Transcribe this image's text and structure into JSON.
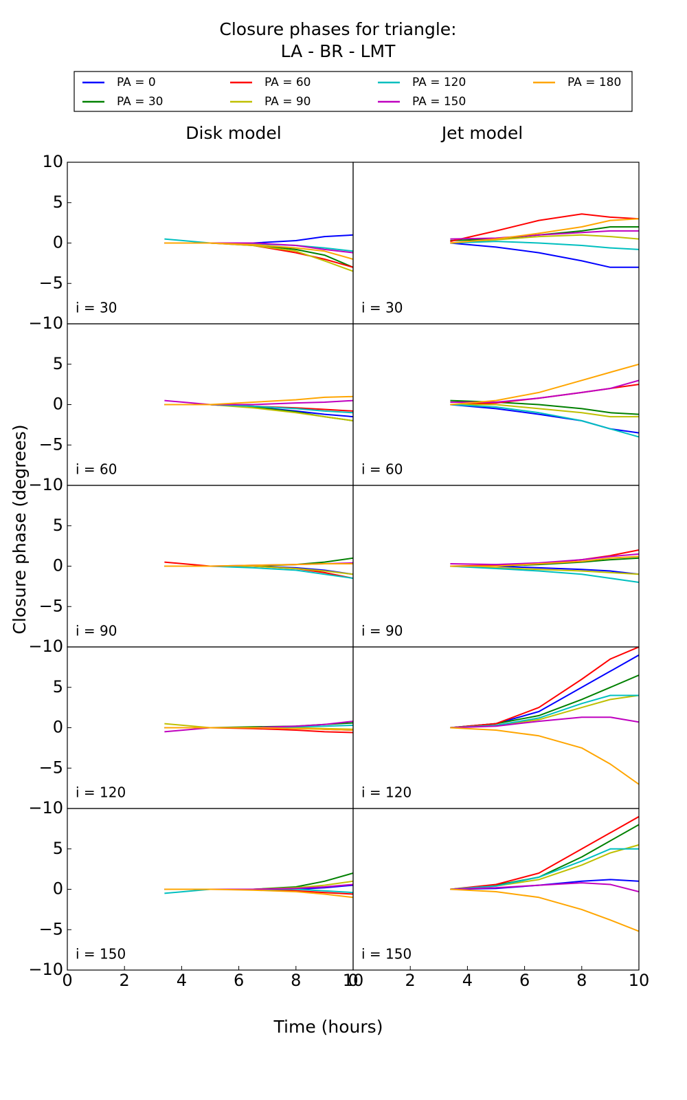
{
  "title": [
    "Closure phases for triangle:",
    "LA - BR - LMT"
  ],
  "legend": [
    {
      "name": "PA = 0",
      "color": "#0000ff"
    },
    {
      "name": "PA = 30",
      "color": "#008000"
    },
    {
      "name": "PA = 60",
      "color": "#ff0000"
    },
    {
      "name": "PA = 90",
      "color": "#bfbf00"
    },
    {
      "name": "PA = 120",
      "color": "#00bfbf"
    },
    {
      "name": "PA = 150",
      "color": "#bf00bf"
    },
    {
      "name": "PA = 180",
      "color": "#ffa500"
    }
  ],
  "column_titles": [
    "Disk model",
    "Jet model"
  ],
  "xlabel": "Time (hours)",
  "ylabel": "Closure phase (degrees)",
  "chart_data": [
    {
      "type": "line",
      "annotation": "i = 30",
      "x": [
        3.4,
        5,
        6.5,
        8,
        9,
        10
      ],
      "xlim": [
        0,
        10
      ],
      "ylim": [
        -10,
        10
      ],
      "yticks": [
        {
          "value": -10,
          "label": "−10"
        },
        {
          "value": -5,
          "label": "−5"
        },
        0,
        5,
        10
      ],
      "series": [
        {
          "color": "#0000ff",
          "values": [
            0,
            0,
            0,
            0.3,
            0.8,
            1
          ]
        },
        {
          "color": "#008000",
          "values": [
            0,
            0,
            -0.2,
            -0.8,
            -1.5,
            -3
          ]
        },
        {
          "color": "#ff0000",
          "values": [
            0,
            0,
            -0.3,
            -1.2,
            -2,
            -3
          ]
        },
        {
          "color": "#bfbf00",
          "values": [
            0,
            0,
            -0.3,
            -1,
            -2.2,
            -3.5
          ]
        },
        {
          "color": "#00bfbf",
          "values": [
            0.5,
            0,
            -0.1,
            -0.3,
            -0.6,
            -1
          ]
        },
        {
          "color": "#bf00bf",
          "values": [
            0,
            0,
            0,
            -0.3,
            -0.8,
            -1.2
          ]
        },
        {
          "color": "#ffa500",
          "values": [
            0,
            0,
            -0.2,
            -0.6,
            -1,
            -2
          ]
        }
      ]
    },
    {
      "type": "line",
      "annotation": "i = 30",
      "x": [
        3.4,
        5,
        6.5,
        8,
        9,
        10
      ],
      "xlim": [
        0,
        10
      ],
      "ylim": [
        -10,
        10
      ],
      "series": [
        {
          "color": "#0000ff",
          "values": [
            0,
            -0.5,
            -1.2,
            -2.2,
            -3,
            -3
          ]
        },
        {
          "color": "#008000",
          "values": [
            0.3,
            0.5,
            1,
            1.5,
            2,
            2
          ]
        },
        {
          "color": "#ff0000",
          "values": [
            0.2,
            1.5,
            2.8,
            3.6,
            3.2,
            3
          ]
        },
        {
          "color": "#bfbf00",
          "values": [
            0,
            0.4,
            0.8,
            1,
            0.8,
            0.5
          ]
        },
        {
          "color": "#00bfbf",
          "values": [
            0,
            0.2,
            0,
            -0.3,
            -0.6,
            -0.8
          ]
        },
        {
          "color": "#bf00bf",
          "values": [
            0.5,
            0.6,
            1,
            1.3,
            1.5,
            1.5
          ]
        },
        {
          "color": "#ffa500",
          "values": [
            0,
            0.5,
            1.2,
            2,
            2.8,
            3
          ]
        }
      ]
    },
    {
      "type": "line",
      "annotation": "i = 60",
      "x": [
        3.4,
        5,
        6.5,
        8,
        9,
        10
      ],
      "xlim": [
        0,
        10
      ],
      "ylim": [
        -10,
        10
      ],
      "yticks": [
        {
          "value": -10,
          "label": "−10"
        },
        {
          "value": -5,
          "label": "−5"
        },
        0,
        5
      ],
      "series": [
        {
          "color": "#0000ff",
          "values": [
            0,
            0,
            -0.3,
            -0.8,
            -1.2,
            -1.5
          ]
        },
        {
          "color": "#008000",
          "values": [
            0,
            0,
            -0.3,
            -0.9,
            -1.5,
            -2
          ]
        },
        {
          "color": "#ff0000",
          "values": [
            0,
            0,
            -0.2,
            -0.4,
            -0.6,
            -0.8
          ]
        },
        {
          "color": "#bfbf00",
          "values": [
            0,
            0,
            -0.4,
            -1,
            -1.5,
            -2
          ]
        },
        {
          "color": "#00bfbf",
          "values": [
            0,
            0,
            -0.2,
            -0.5,
            -0.8,
            -1
          ]
        },
        {
          "color": "#bf00bf",
          "values": [
            0.5,
            0,
            0,
            0.2,
            0.3,
            0.5
          ]
        },
        {
          "color": "#ffa500",
          "values": [
            0,
            0,
            0.3,
            0.6,
            0.9,
            1
          ]
        }
      ]
    },
    {
      "type": "line",
      "annotation": "i = 60",
      "x": [
        3.4,
        5,
        6.5,
        8,
        9,
        10
      ],
      "xlim": [
        0,
        10
      ],
      "ylim": [
        -10,
        10
      ],
      "series": [
        {
          "color": "#0000ff",
          "values": [
            0,
            -0.5,
            -1.2,
            -2,
            -3,
            -3.5
          ]
        },
        {
          "color": "#008000",
          "values": [
            0.5,
            0.3,
            0,
            -0.5,
            -1,
            -1.2
          ]
        },
        {
          "color": "#ff0000",
          "values": [
            0,
            0.2,
            0.8,
            1.5,
            2,
            2.5
          ]
        },
        {
          "color": "#bfbf00",
          "values": [
            0,
            0,
            -0.5,
            -1,
            -1.5,
            -1.5
          ]
        },
        {
          "color": "#00bfbf",
          "values": [
            0,
            -0.3,
            -1,
            -2,
            -3,
            -4
          ]
        },
        {
          "color": "#bf00bf",
          "values": [
            0.3,
            0.3,
            0.8,
            1.5,
            2,
            3
          ]
        },
        {
          "color": "#ffa500",
          "values": [
            0,
            0.5,
            1.5,
            3,
            4,
            5
          ]
        }
      ]
    },
    {
      "type": "line",
      "annotation": "i = 90",
      "x": [
        3.4,
        5,
        6.5,
        8,
        9,
        10
      ],
      "xlim": [
        0,
        10
      ],
      "ylim": [
        -10,
        10
      ],
      "yticks": [
        {
          "value": -10,
          "label": "−10"
        },
        {
          "value": -5,
          "label": "−5"
        },
        0,
        5
      ],
      "series": [
        {
          "color": "#0000ff",
          "values": [
            0,
            0,
            0,
            -0.2,
            -0.5,
            -1
          ]
        },
        {
          "color": "#008000",
          "values": [
            0,
            0,
            0,
            0.2,
            0.5,
            1
          ]
        },
        {
          "color": "#ff0000",
          "values": [
            0.5,
            0,
            0,
            -0.3,
            -0.8,
            -1.5
          ]
        },
        {
          "color": "#bfbf00",
          "values": [
            0,
            0,
            0,
            -0.3,
            -0.6,
            -1
          ]
        },
        {
          "color": "#00bfbf",
          "values": [
            0,
            0,
            -0.2,
            -0.5,
            -1,
            -1.5
          ]
        },
        {
          "color": "#bf00bf",
          "values": [
            0,
            0,
            0.1,
            0.2,
            0.3,
            0.4
          ]
        },
        {
          "color": "#ffa500",
          "values": [
            0,
            0,
            0.1,
            0.2,
            0.3,
            0.3
          ]
        }
      ]
    },
    {
      "type": "line",
      "annotation": "i = 90",
      "x": [
        3.4,
        5,
        6.5,
        8,
        9,
        10
      ],
      "xlim": [
        0,
        10
      ],
      "ylim": [
        -10,
        10
      ],
      "series": [
        {
          "color": "#0000ff",
          "values": [
            0,
            0,
            -0.2,
            -0.4,
            -0.6,
            -1
          ]
        },
        {
          "color": "#008000",
          "values": [
            0,
            0,
            0.2,
            0.5,
            0.8,
            1
          ]
        },
        {
          "color": "#ff0000",
          "values": [
            0,
            0.1,
            0.3,
            0.8,
            1.3,
            2
          ]
        },
        {
          "color": "#bfbf00",
          "values": [
            0,
            -0.2,
            -0.4,
            -0.6,
            -0.8,
            -1
          ]
        },
        {
          "color": "#00bfbf",
          "values": [
            0,
            -0.3,
            -0.6,
            -1,
            -1.5,
            -2
          ]
        },
        {
          "color": "#bf00bf",
          "values": [
            0.3,
            0.2,
            0.4,
            0.8,
            1.2,
            1.5
          ]
        },
        {
          "color": "#ffa500",
          "values": [
            0,
            0,
            0.3,
            0.6,
            1,
            1.2
          ]
        }
      ]
    },
    {
      "type": "line",
      "annotation": "i = 120",
      "x": [
        3.4,
        5,
        6.5,
        8,
        9,
        10
      ],
      "xlim": [
        0,
        10
      ],
      "ylim": [
        -10,
        10
      ],
      "yticks": [
        {
          "value": -10,
          "label": "−10"
        },
        {
          "value": -5,
          "label": "−5"
        },
        0,
        5
      ],
      "series": [
        {
          "color": "#0000ff",
          "values": [
            0,
            0,
            0,
            0,
            -0.2,
            -0.3
          ]
        },
        {
          "color": "#008000",
          "values": [
            0,
            0,
            0.1,
            0.2,
            0.4,
            0.6
          ]
        },
        {
          "color": "#ff0000",
          "values": [
            0,
            0,
            -0.1,
            -0.3,
            -0.5,
            -0.6
          ]
        },
        {
          "color": "#bfbf00",
          "values": [
            0.5,
            0,
            0,
            0,
            -0.1,
            -0.2
          ]
        },
        {
          "color": "#00bfbf",
          "values": [
            0,
            0,
            0,
            0.1,
            0.2,
            0.3
          ]
        },
        {
          "color": "#bf00bf",
          "values": [
            -0.5,
            0,
            0,
            0.2,
            0.4,
            0.8
          ]
        },
        {
          "color": "#ffa500",
          "values": [
            0,
            0,
            0,
            -0.1,
            -0.2,
            -0.3
          ]
        }
      ]
    },
    {
      "type": "line",
      "annotation": "i = 120",
      "x": [
        3.4,
        5,
        6.5,
        8,
        9,
        10
      ],
      "xlim": [
        0,
        10
      ],
      "ylim": [
        -10,
        10
      ],
      "series": [
        {
          "color": "#0000ff",
          "values": [
            0,
            0.5,
            2,
            5,
            7,
            9
          ]
        },
        {
          "color": "#008000",
          "values": [
            0,
            0.5,
            1.5,
            3.5,
            5,
            6.5
          ]
        },
        {
          "color": "#ff0000",
          "values": [
            0,
            0.5,
            2.5,
            6,
            8.5,
            10
          ]
        },
        {
          "color": "#bfbf00",
          "values": [
            0,
            0.3,
            1,
            2.5,
            3.5,
            4
          ]
        },
        {
          "color": "#00bfbf",
          "values": [
            0,
            0.3,
            1.2,
            3,
            4,
            4
          ]
        },
        {
          "color": "#bf00bf",
          "values": [
            0,
            0.2,
            0.8,
            1.3,
            1.3,
            0.7
          ]
        },
        {
          "color": "#ffa500",
          "values": [
            0,
            -0.3,
            -1,
            -2.5,
            -4.5,
            -7
          ]
        }
      ]
    },
    {
      "type": "line",
      "annotation": "i = 150",
      "x": [
        3.4,
        5,
        6.5,
        8,
        9,
        10
      ],
      "xlim": [
        0,
        10
      ],
      "ylim": [
        -10,
        10
      ],
      "yticks": [
        {
          "value": -10,
          "label": "−10"
        },
        {
          "value": -5,
          "label": "−5"
        },
        0,
        5
      ],
      "xticks": [
        0,
        2,
        4,
        6,
        8,
        10
      ],
      "series": [
        {
          "color": "#0000ff",
          "values": [
            0,
            0,
            0,
            0,
            0.2,
            0.5
          ]
        },
        {
          "color": "#008000",
          "values": [
            0,
            0,
            0,
            0.3,
            1,
            2
          ]
        },
        {
          "color": "#ff0000",
          "values": [
            0,
            0,
            0,
            -0.2,
            -0.4,
            -0.6
          ]
        },
        {
          "color": "#bfbf00",
          "values": [
            0,
            0,
            0,
            0.2,
            0.5,
            1
          ]
        },
        {
          "color": "#00bfbf",
          "values": [
            -0.5,
            0,
            0,
            0,
            -0.2,
            -0.4
          ]
        },
        {
          "color": "#bf00bf",
          "values": [
            0,
            0,
            0,
            0.1,
            0.3,
            0.6
          ]
        },
        {
          "color": "#ffa500",
          "values": [
            0,
            0,
            -0.1,
            -0.3,
            -0.6,
            -1
          ]
        }
      ]
    },
    {
      "type": "line",
      "annotation": "i = 150",
      "x": [
        3.4,
        5,
        6.5,
        8,
        9,
        10
      ],
      "xlim": [
        0,
        10
      ],
      "ylim": [
        -10,
        10
      ],
      "xticks": [
        0,
        2,
        4,
        6,
        8,
        10
      ],
      "series": [
        {
          "color": "#0000ff",
          "values": [
            0,
            0.1,
            0.5,
            1,
            1.2,
            1
          ]
        },
        {
          "color": "#008000",
          "values": [
            0,
            0.5,
            1.5,
            4,
            6,
            8
          ]
        },
        {
          "color": "#ff0000",
          "values": [
            0,
            0.6,
            2,
            5,
            7,
            9
          ]
        },
        {
          "color": "#bfbf00",
          "values": [
            0,
            0.4,
            1.2,
            3,
            4.5,
            5.5
          ]
        },
        {
          "color": "#00bfbf",
          "values": [
            0,
            0.4,
            1.5,
            3.5,
            5,
            5
          ]
        },
        {
          "color": "#bf00bf",
          "values": [
            0,
            0.2,
            0.5,
            0.8,
            0.6,
            -0.3
          ]
        },
        {
          "color": "#ffa500",
          "values": [
            0,
            -0.3,
            -1,
            -2.5,
            -3.8,
            -5.2
          ]
        }
      ]
    }
  ]
}
